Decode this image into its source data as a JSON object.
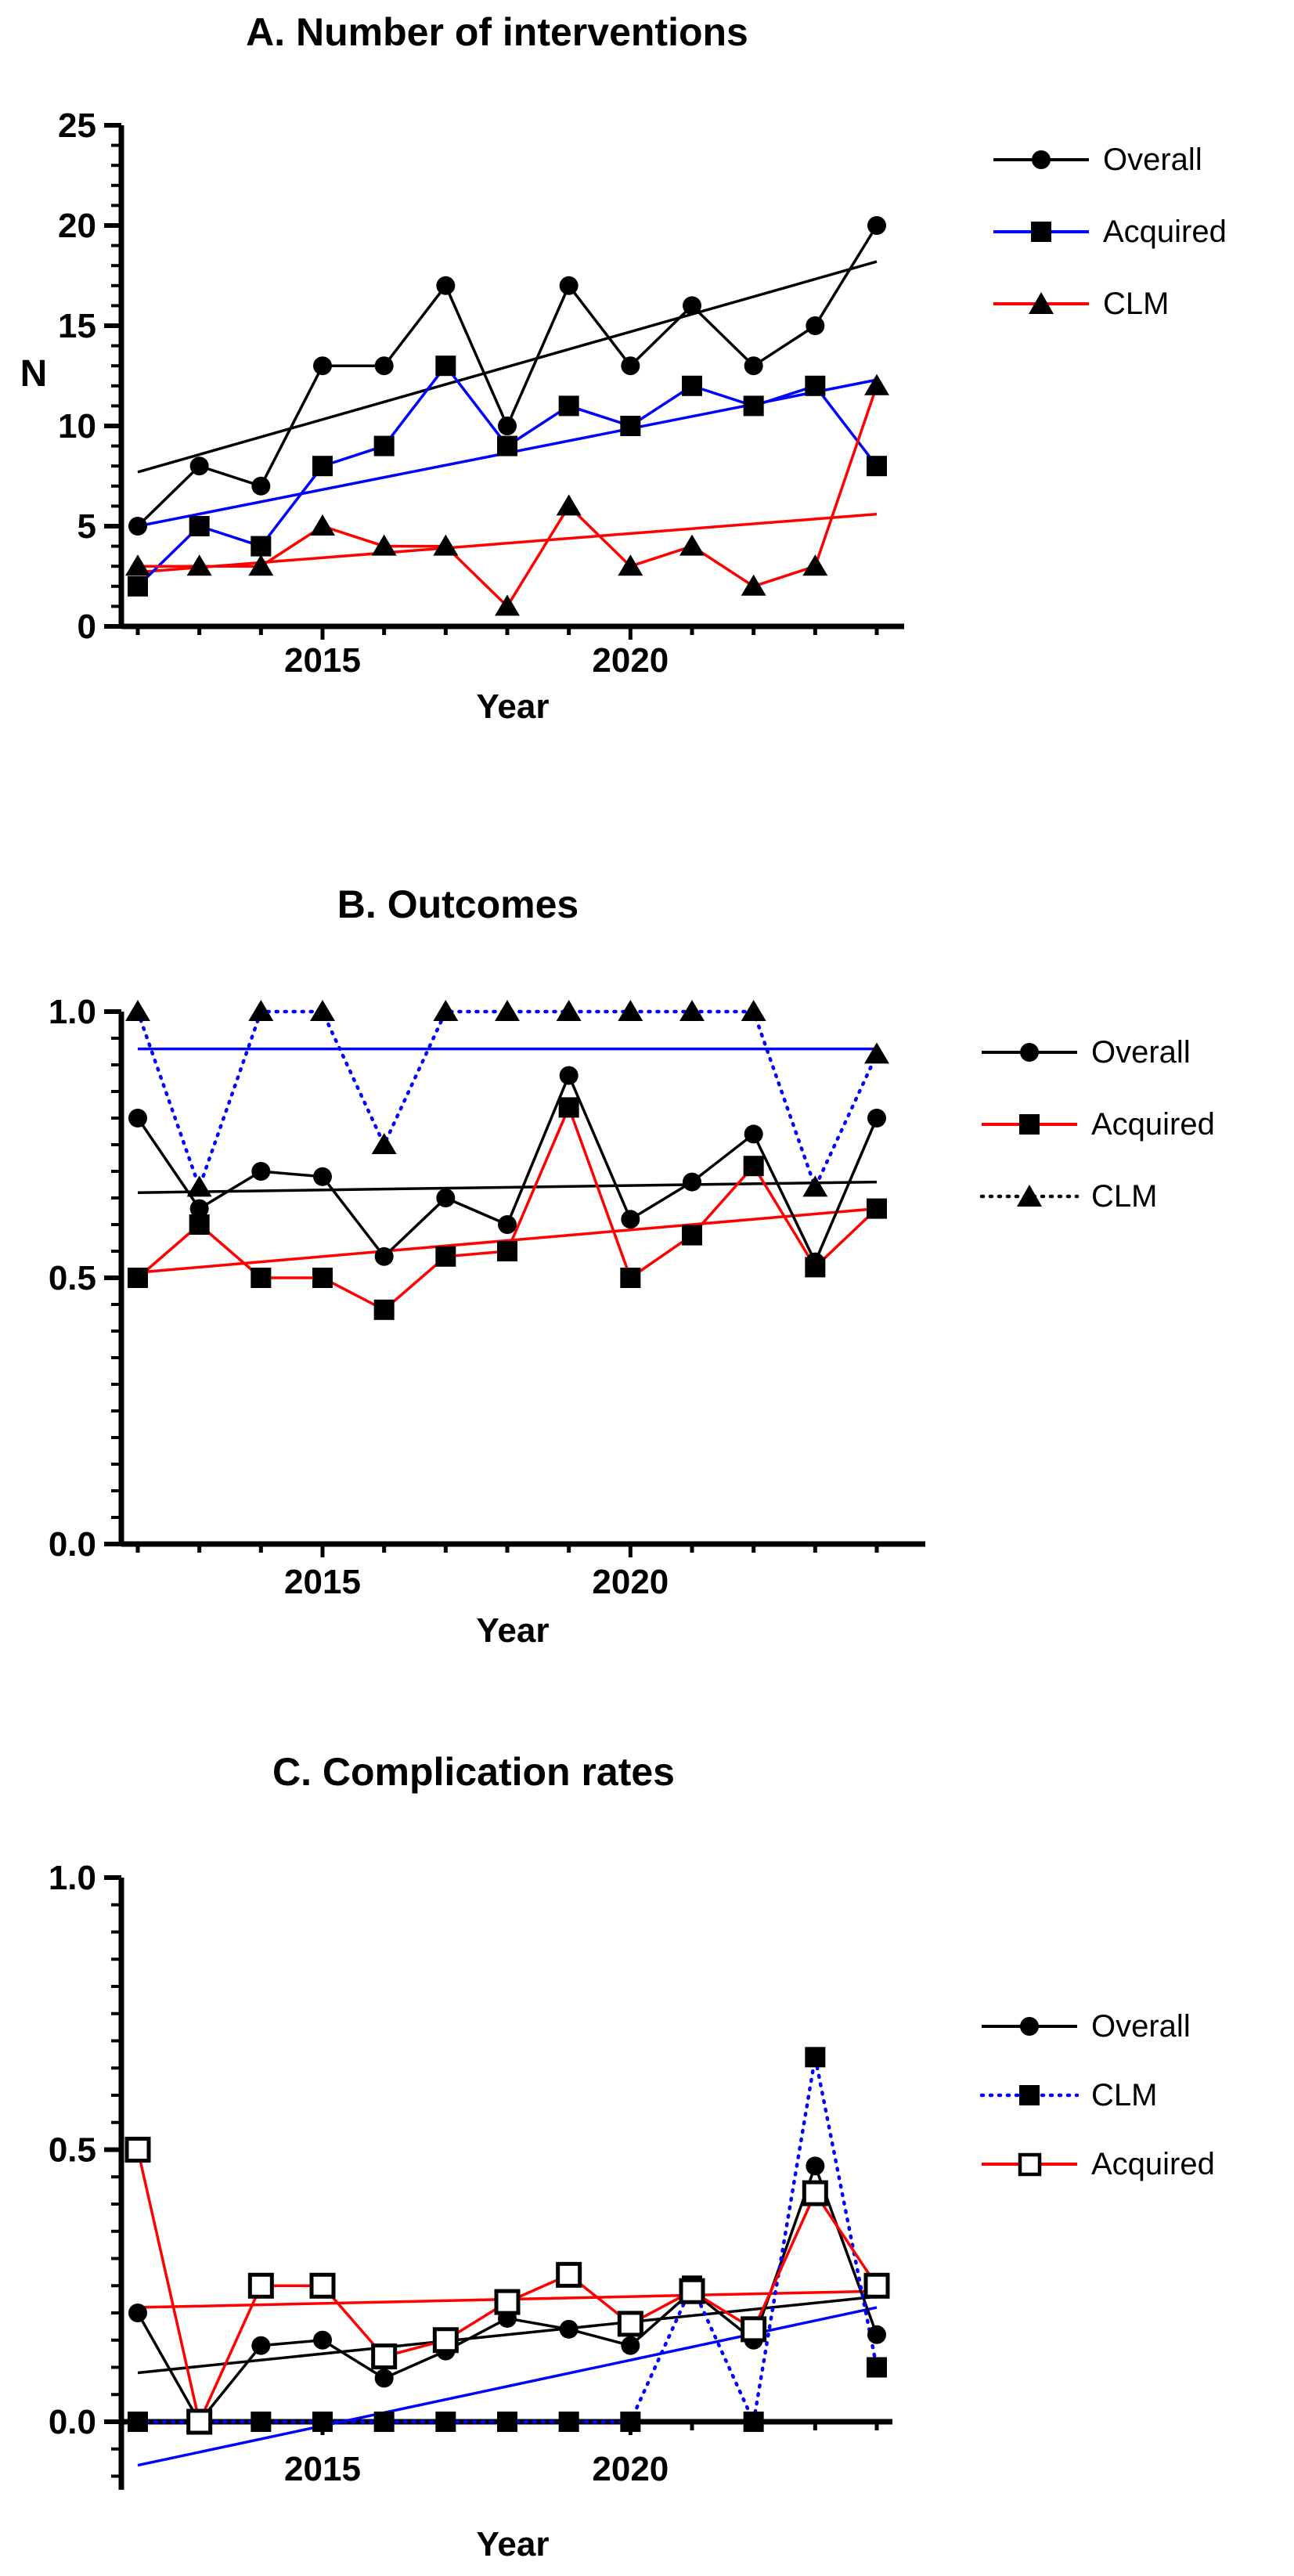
{
  "figure": {
    "background": "#ffffff",
    "panel_count": 3
  },
  "colors": {
    "black": "#000000",
    "red": "#ff0000",
    "blue": "#0000ff",
    "marker": "#000000"
  },
  "chart_data": [
    {
      "panel": "A",
      "type": "line",
      "title": "A. Number of interventions",
      "xlabel": "Year",
      "ylabel": "N",
      "x": [
        2012,
        2013,
        2014,
        2015,
        2016,
        2017,
        2018,
        2019,
        2020,
        2021,
        2022,
        2023,
        2024
      ],
      "xticks_labeled": [
        2015,
        2020
      ],
      "ylim": [
        0,
        25
      ],
      "ytick_values": [
        0,
        5,
        10,
        15,
        20,
        25
      ],
      "ytick_labels": [
        "0",
        "5",
        "10",
        "15",
        "20",
        "25"
      ],
      "y_minor_step": 1,
      "grid": false,
      "legend_position": "right",
      "series": [
        {
          "name": "Overall",
          "marker": "circle",
          "marker_color": "#000000",
          "line_color": "#000000",
          "line_style": "solid",
          "values": [
            5,
            8,
            7,
            13,
            13,
            17,
            10,
            17,
            13,
            16,
            13,
            15,
            20
          ],
          "trend": [
            7.7,
            18.2
          ]
        },
        {
          "name": "Acquired",
          "marker": "square",
          "marker_color": "#000000",
          "line_color": "#0000ff",
          "line_style": "solid",
          "values": [
            2,
            5,
            4,
            8,
            9,
            13,
            9,
            11,
            10,
            12,
            11,
            12,
            8
          ],
          "trend": [
            5.0,
            12.3
          ]
        },
        {
          "name": "CLM",
          "marker": "triangle",
          "marker_color": "#000000",
          "line_color": "#ff0000",
          "line_style": "solid",
          "values": [
            3,
            3,
            3,
            5,
            4,
            4,
            1,
            6,
            3,
            4,
            2,
            3,
            12
          ],
          "trend": [
            2.7,
            5.6
          ]
        }
      ]
    },
    {
      "panel": "B",
      "type": "line",
      "title": "B. Outcomes",
      "xlabel": "Year",
      "ylabel": "",
      "x": [
        2012,
        2013,
        2014,
        2015,
        2016,
        2017,
        2018,
        2019,
        2020,
        2021,
        2022,
        2023,
        2024
      ],
      "xticks_labeled": [
        2015,
        2020
      ],
      "ylim": [
        0,
        1
      ],
      "ytick_values": [
        0,
        0.5,
        1
      ],
      "ytick_labels": [
        "0.0",
        "0.5",
        "1.0"
      ],
      "y_minor_step": 0.05,
      "grid": false,
      "legend_position": "right",
      "series": [
        {
          "name": "Overall",
          "marker": "circle",
          "marker_color": "#000000",
          "line_color": "#000000",
          "line_style": "solid",
          "values": [
            0.8,
            0.63,
            0.7,
            0.69,
            0.54,
            0.65,
            0.6,
            0.88,
            0.61,
            0.68,
            0.77,
            0.53,
            0.8
          ],
          "trend": [
            0.66,
            0.68
          ]
        },
        {
          "name": "Acquired",
          "marker": "square",
          "marker_color": "#000000",
          "line_color": "#ff0000",
          "line_style": "solid",
          "values": [
            0.5,
            0.6,
            0.5,
            0.5,
            0.44,
            0.54,
            0.55,
            0.82,
            0.5,
            0.58,
            0.71,
            0.52,
            0.63
          ],
          "trend": [
            0.51,
            0.63
          ]
        },
        {
          "name": "CLM",
          "marker": "triangle",
          "marker_color": "#000000",
          "line_color": "#0000ff",
          "line_style": "dotted",
          "values": [
            1.0,
            0.67,
            1.0,
            1.0,
            0.75,
            1.0,
            1.0,
            1.0,
            1.0,
            1.0,
            1.0,
            0.67,
            0.92
          ],
          "trend": [
            0.93,
            0.93
          ]
        }
      ]
    },
    {
      "panel": "C",
      "type": "line",
      "title": "C. Complication rates",
      "xlabel": "Year",
      "ylabel": "",
      "x": [
        2012,
        2013,
        2014,
        2015,
        2016,
        2017,
        2018,
        2019,
        2020,
        2021,
        2022,
        2023,
        2024
      ],
      "xticks_labeled": [
        2015,
        2020
      ],
      "ylim": [
        0,
        1
      ],
      "ytick_values": [
        0,
        0.5,
        1
      ],
      "ytick_labels": [
        "0.0",
        "0.5",
        "1.0"
      ],
      "y_minor_step": 0.05,
      "axis_extends_below_zero": 0.125,
      "grid": false,
      "legend_position": "right",
      "series": [
        {
          "name": "Overall",
          "marker": "circle",
          "marker_color": "#000000",
          "line_color": "#000000",
          "line_style": "solid",
          "values": [
            0.2,
            0.0,
            0.14,
            0.15,
            0.08,
            0.13,
            0.19,
            0.17,
            0.14,
            0.24,
            0.15,
            0.47,
            0.16
          ],
          "trend": [
            0.09,
            0.23
          ]
        },
        {
          "name": "CLM",
          "marker": "square",
          "marker_color": "#000000",
          "line_color": "#0000ff",
          "line_style": "dotted",
          "values": [
            0.0,
            0.0,
            0.0,
            0.0,
            0.0,
            0.0,
            0.0,
            0.0,
            0.0,
            0.25,
            0.0,
            0.67,
            0.1
          ],
          "trend": [
            -0.08,
            0.21
          ]
        },
        {
          "name": "Acquired",
          "marker": "square-open",
          "marker_color": "#000000",
          "line_color": "#ff0000",
          "line_style": "solid",
          "values": [
            0.5,
            0.0,
            0.25,
            0.25,
            0.12,
            0.15,
            0.22,
            0.27,
            0.18,
            0.24,
            0.17,
            0.42,
            0.25
          ],
          "trend": [
            0.21,
            0.24
          ]
        }
      ]
    }
  ]
}
